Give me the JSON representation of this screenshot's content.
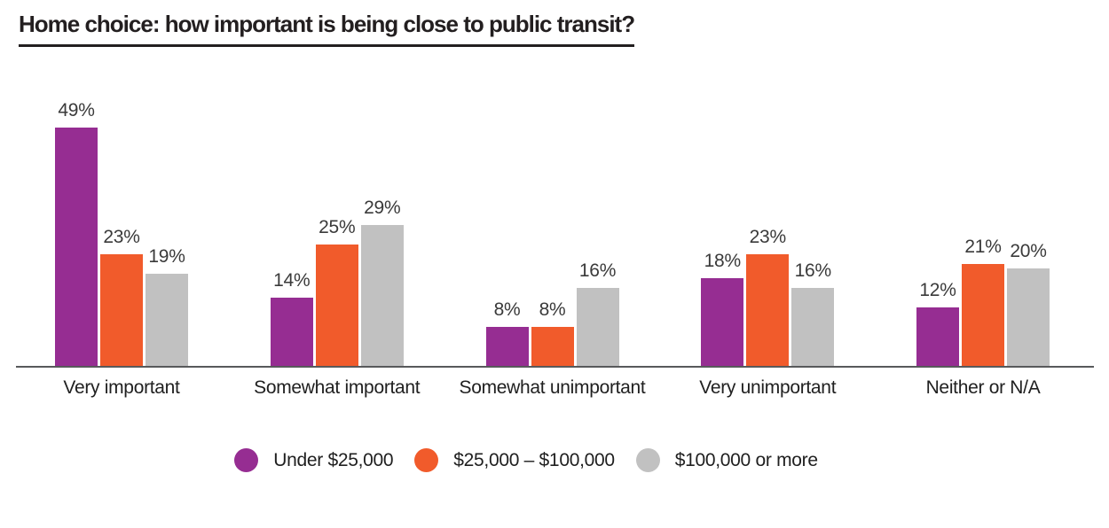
{
  "colors": {
    "purple": "#962D92",
    "orange": "#F15B2B",
    "gray": "#C1C1C1",
    "axis": "#58595B",
    "title_text": "#231F20",
    "label_text": "#3A3A3A"
  },
  "chart_data": {
    "type": "bar",
    "title": "Home choice: how important is being close to public transit?",
    "categories": [
      "Very important",
      "Somewhat important",
      "Somewhat unimportant",
      "Very unimportant",
      "Neither or N/A"
    ],
    "series": [
      {
        "name": "Under $25,000",
        "color": "#962D92",
        "values": [
          49,
          14,
          8,
          18,
          12
        ]
      },
      {
        "name": "$25,000 – $100,000",
        "color": "#F15B2B",
        "values": [
          23,
          25,
          8,
          23,
          21
        ]
      },
      {
        "name": "$100,000 or more",
        "color": "#C1C1C1",
        "values": [
          19,
          29,
          16,
          16,
          20
        ]
      }
    ],
    "value_suffix": "%",
    "xlabel": "",
    "ylabel": "",
    "ylim": [
      0,
      55
    ],
    "grid": false,
    "value_labels": true,
    "legend_position": "bottom"
  }
}
